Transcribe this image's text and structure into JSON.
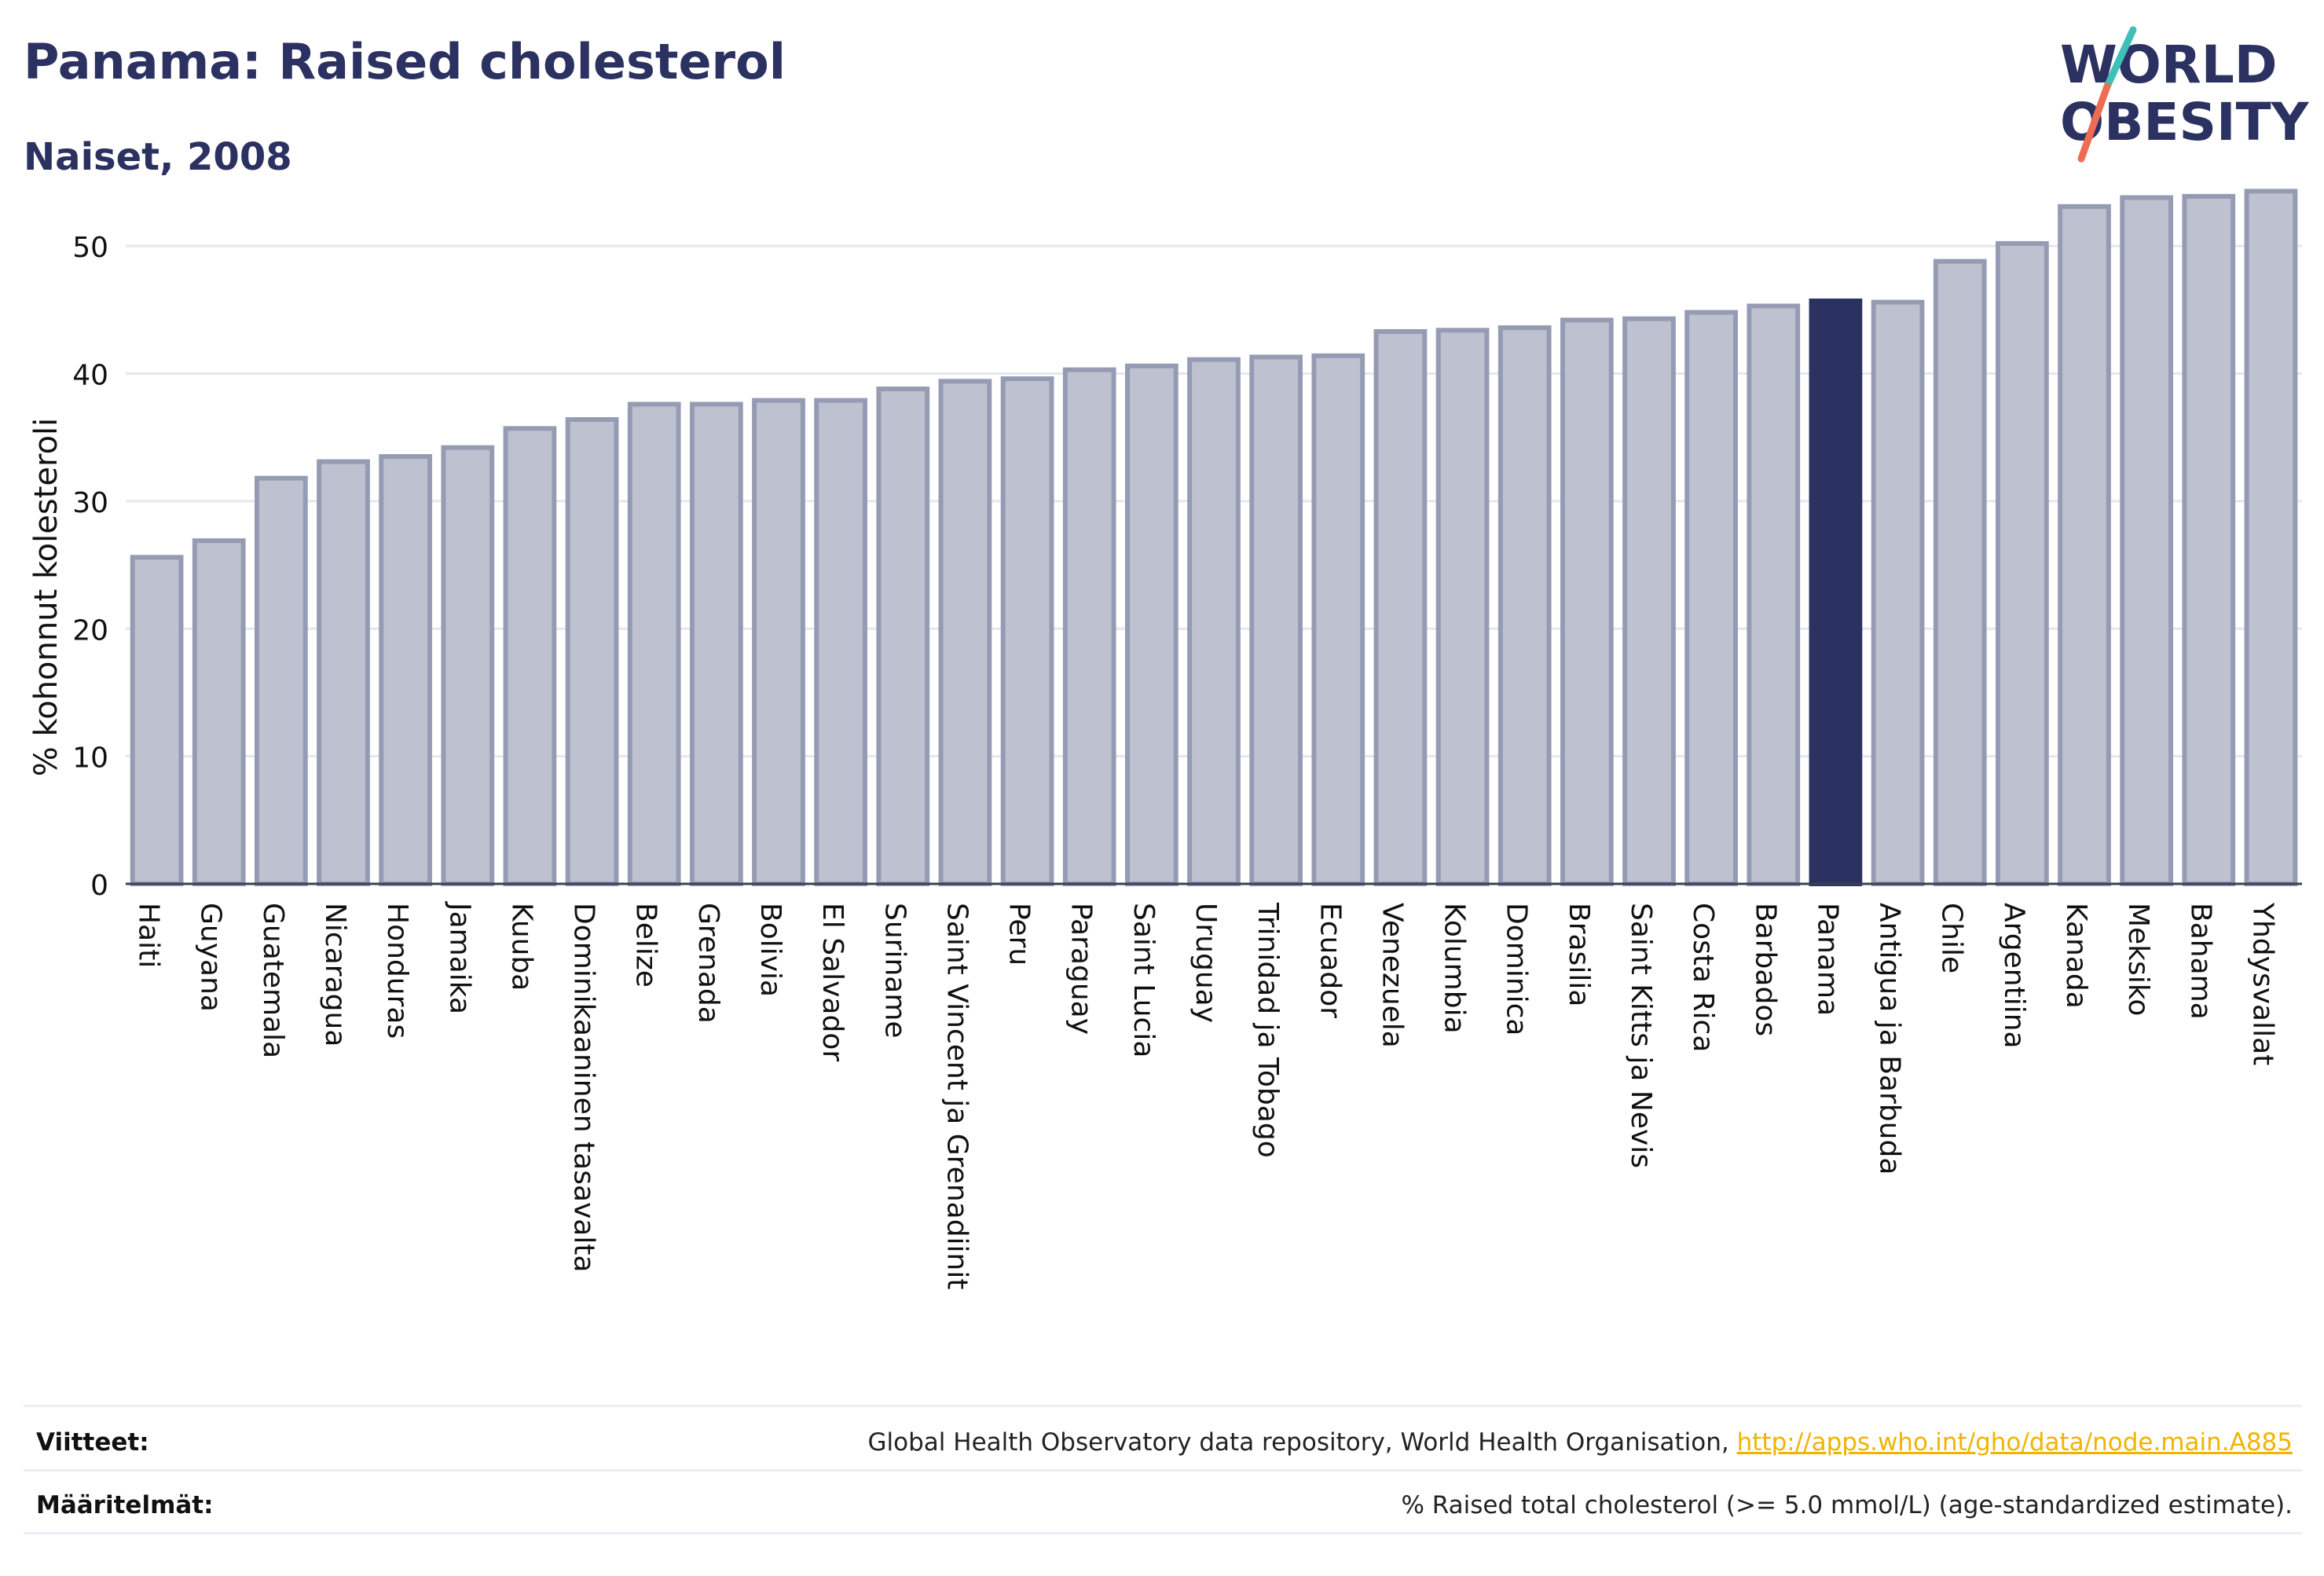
{
  "header": {
    "title": "Panama: Raised cholesterol",
    "subtitle": "Naiset, 2008"
  },
  "logo": {
    "line1": "WORLD",
    "line2": "OBESITY",
    "colors": {
      "text": "#2b3160",
      "slash_top": "#3ebfb7",
      "slash_bottom": "#ee6b54"
    }
  },
  "colors": {
    "bar_fill": "#bec2d0",
    "bar_stroke": "#959bb3",
    "highlight": "#2b3160",
    "grid": "#e6e7ee",
    "axis_text": "#111111"
  },
  "chart_data": {
    "type": "bar",
    "ylabel": "% kohonnut kolesteroli",
    "ylim": [
      0,
      55
    ],
    "yticks": [
      0,
      10,
      20,
      30,
      40,
      50
    ],
    "grid": true,
    "highlight": "Panama",
    "categories": [
      "Haiti",
      "Guyana",
      "Guatemala",
      "Nicaragua",
      "Honduras",
      "Jamaika",
      "Kuuba",
      "Dominikaaninen tasavalta",
      "Belize",
      "Grenada",
      "Bolivia",
      "El Salvador",
      "Suriname",
      "Saint Vincent ja Grenadiinit",
      "Peru",
      "Paraguay",
      "Saint Lucia",
      "Uruguay",
      "Trinidad ja Tobago",
      "Ecuador",
      "Venezuela",
      "Kolumbia",
      "Dominica",
      "Brasilia",
      "Saint Kitts ja Nevis",
      "Costa Rica",
      "Barbados",
      "Panama",
      "Antigua ja Barbuda",
      "Chile",
      "Argentiina",
      "Kanada",
      "Meksiko",
      "Bahama",
      "Yhdysvallat"
    ],
    "values": [
      25.6,
      26.9,
      31.8,
      33.1,
      33.5,
      34.2,
      35.7,
      36.4,
      37.6,
      37.6,
      37.9,
      37.9,
      38.8,
      39.4,
      39.6,
      40.3,
      40.6,
      41.1,
      41.3,
      41.4,
      43.3,
      43.4,
      43.6,
      44.2,
      44.3,
      44.8,
      45.3,
      45.7,
      45.6,
      48.8,
      50.2,
      53.1,
      53.8,
      53.9,
      54.3
    ]
  },
  "footer": {
    "references_label": "Viitteet:",
    "references_text": "Global Health Observatory data repository, World Health Organisation, ",
    "references_link": "http://apps.who.int/gho/data/node.main.A885",
    "definitions_label": "Määritelmät:",
    "definitions_text": "% Raised total cholesterol (>= 5.0 mmol/L) (age-standardized estimate)."
  }
}
